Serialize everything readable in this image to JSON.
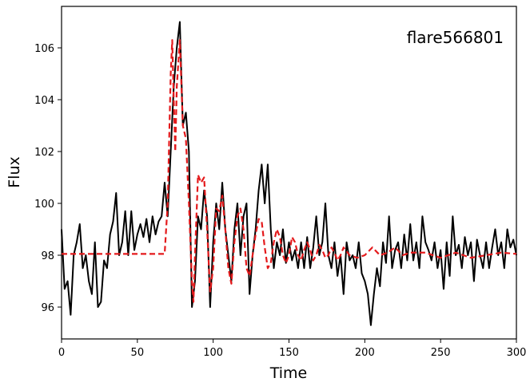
{
  "chart_data": {
    "type": "line",
    "annotation": "flare566801",
    "x_label": "Time",
    "y_label": "Flux",
    "xlim": [
      0,
      300
    ],
    "ylim": [
      94.77,
      107.6
    ],
    "xticks": [
      0,
      50,
      100,
      150,
      200,
      250,
      300
    ],
    "yticks": [
      96,
      98,
      100,
      102,
      104,
      106
    ],
    "grid": false,
    "series": [
      {
        "color": "#000000",
        "dash": false,
        "x": [
          0,
          2,
          4,
          6,
          8,
          10,
          12,
          14,
          16,
          18,
          20,
          22,
          24,
          26,
          28,
          30,
          32,
          34,
          36,
          38,
          40,
          42,
          44,
          46,
          48,
          50,
          52,
          54,
          56,
          58,
          60,
          62,
          64,
          66,
          68,
          70,
          72,
          74,
          76,
          78,
          80,
          82,
          84,
          86,
          88,
          90,
          92,
          94,
          96,
          98,
          100,
          102,
          104,
          106,
          108,
          110,
          112,
          114,
          116,
          118,
          120,
          122,
          124,
          126,
          128,
          130,
          132,
          134,
          136,
          138,
          140,
          142,
          144,
          146,
          148,
          150,
          152,
          154,
          156,
          158,
          160,
          162,
          164,
          166,
          168,
          170,
          172,
          174,
          176,
          178,
          180,
          182,
          184,
          186,
          188,
          190,
          192,
          194,
          196,
          198,
          200,
          202,
          204,
          206,
          208,
          210,
          212,
          214,
          216,
          218,
          220,
          222,
          224,
          226,
          228,
          230,
          232,
          234,
          236,
          238,
          240,
          242,
          244,
          246,
          248,
          250,
          252,
          254,
          256,
          258,
          260,
          262,
          264,
          266,
          268,
          270,
          272,
          274,
          276,
          278,
          280,
          282,
          284,
          286,
          288,
          290,
          292,
          294,
          296,
          298,
          300
        ],
        "values": [
          99,
          96.7,
          97,
          95.7,
          98,
          98.5,
          99.2,
          97.5,
          98,
          97,
          96.5,
          98.5,
          96,
          96.2,
          97.8,
          97.5,
          98.8,
          99.3,
          100.4,
          98,
          98.5,
          99.7,
          98,
          99.7,
          98.2,
          98.8,
          99.2,
          98.7,
          99.4,
          98.5,
          99.5,
          98.8,
          99.3,
          99.5,
          100.8,
          99.5,
          102,
          104.5,
          106,
          107,
          103,
          103.5,
          102,
          96,
          97,
          99.5,
          99,
          100.5,
          99.5,
          96,
          98.5,
          100,
          99,
          100.8,
          99,
          98,
          97,
          99,
          100,
          98,
          99.5,
          100,
          96.5,
          98,
          99,
          100.5,
          101.5,
          100,
          101.5,
          99,
          97.5,
          98.5,
          98,
          99,
          97.7,
          98.5,
          97.8,
          98.2,
          97.5,
          98.5,
          97.5,
          98.7,
          97.5,
          98.3,
          99.5,
          98,
          98.5,
          100,
          98,
          97.5,
          98.5,
          97.2,
          98,
          96.5,
          98.5,
          97.8,
          98,
          97.5,
          98.5,
          97.3,
          97,
          96.5,
          95.3,
          96.5,
          97.5,
          96.8,
          98.5,
          97.7,
          99.5,
          97.5,
          98.2,
          98.5,
          97.5,
          98.8,
          97.8,
          99.2,
          97.8,
          98.5,
          97.5,
          99.5,
          98.5,
          98.2,
          97.8,
          98.5,
          97.5,
          98.2,
          96.7,
          98.5,
          97.2,
          99.5,
          98,
          98.4,
          97.5,
          98.7,
          98,
          98.5,
          97,
          98.6,
          98,
          97.5,
          98.5,
          97.5,
          98.3,
          99,
          98,
          98.5,
          97.5,
          99,
          98.3,
          98.6,
          98
        ]
      },
      {
        "color": "#e41a1c",
        "dash": true,
        "x": [
          0,
          68,
          70,
          72,
          73,
          74,
          75,
          76,
          78,
          80,
          82,
          84,
          86,
          87,
          88,
          90,
          92,
          94,
          96,
          98,
          100,
          102,
          104,
          106,
          108,
          110,
          112,
          114,
          116,
          118,
          120,
          122,
          124,
          126,
          128,
          130,
          132,
          134,
          136,
          138,
          140,
          142,
          144,
          146,
          148,
          150,
          152,
          154,
          156,
          158,
          160,
          162,
          164,
          166,
          168,
          170,
          172,
          174,
          176,
          178,
          180,
          182,
          184,
          186,
          190,
          195,
          200,
          205,
          210,
          215,
          220,
          225,
          230,
          240,
          250,
          260,
          270,
          280,
          290,
          300
        ],
        "values": [
          98.05,
          98.05,
          100,
          105,
          106.3,
          104,
          102,
          104.5,
          106.3,
          103,
          102.5,
          100,
          97,
          96.2,
          98,
          101.1,
          100.8,
          101,
          99,
          96.6,
          97.5,
          99.8,
          99.7,
          100.3,
          99,
          97.5,
          96.9,
          98.5,
          99.5,
          99.8,
          99,
          97.5,
          97.2,
          98,
          98.8,
          99.4,
          99.3,
          98.3,
          97.5,
          97.7,
          98.5,
          99,
          98.7,
          98,
          97.7,
          98,
          98.7,
          98.5,
          98,
          97.8,
          98.2,
          98.5,
          98.2,
          97.8,
          98,
          98.4,
          98.2,
          97.9,
          98,
          98.3,
          98.1,
          97.8,
          98,
          98.3,
          98,
          97.9,
          98,
          98.3,
          98,
          98.1,
          98.3,
          98,
          98.1,
          98.1,
          97.9,
          98.1,
          97.9,
          98,
          98.1,
          98.05
        ]
      }
    ]
  }
}
